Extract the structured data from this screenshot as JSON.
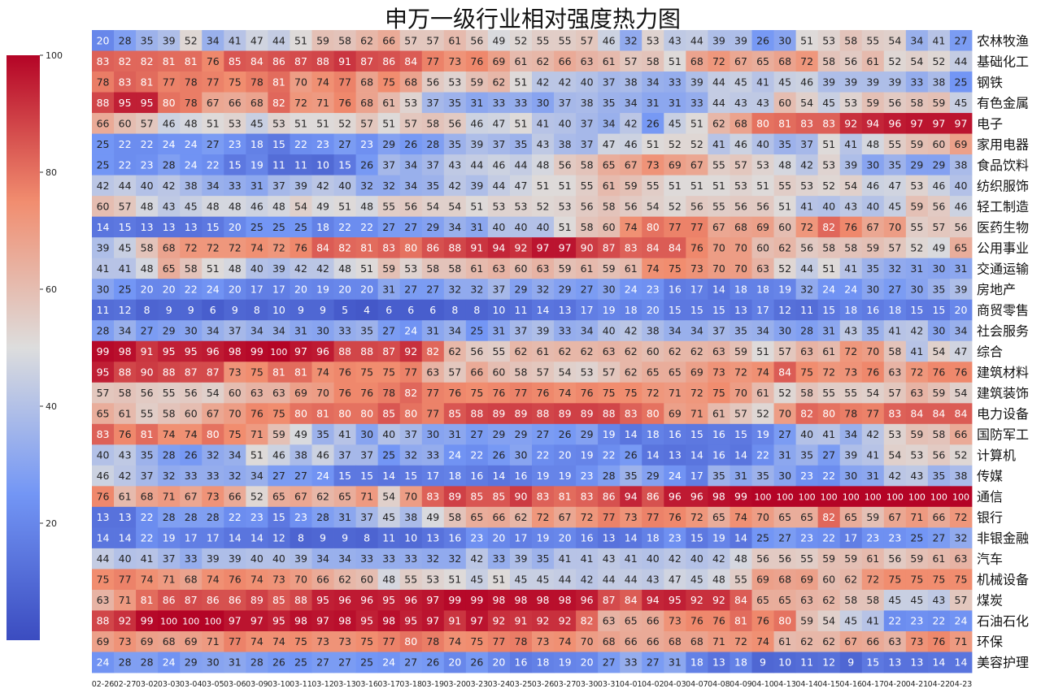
{
  "chart_data": {
    "type": "heatmap",
    "title": "申万一级行业相对强度热力图",
    "xlabel": "",
    "ylabel": "",
    "colorbar": {
      "min": 0,
      "max": 100,
      "ticks": [
        20,
        40,
        60,
        80,
        100
      ],
      "colormap": "coolwarm"
    },
    "colors": {
      "low": "#3b4cc0",
      "mid": "#dddddd",
      "high": "#b40426"
    },
    "x": [
      "02-26",
      "02-27",
      "03-02",
      "03-03",
      "03-04",
      "03-05",
      "03-06",
      "03-09",
      "03-10",
      "03-11",
      "03-12",
      "03-13",
      "03-16",
      "03-17",
      "03-18",
      "03-19",
      "03-20",
      "03-23",
      "03-24",
      "03-25",
      "03-26",
      "03-27",
      "03-30",
      "03-31",
      "04-01",
      "04-02",
      "04-03",
      "04-07",
      "04-08",
      "04-09",
      "04-10",
      "04-13",
      "04-14",
      "04-15",
      "04-16",
      "04-17",
      "04-20",
      "04-21",
      "04-22",
      "04-23"
    ],
    "y": [
      "农林牧渔",
      "基础化工",
      "钢铁",
      "有色金属",
      "电子",
      "家用电器",
      "食品饮料",
      "纺织服饰",
      "轻工制造",
      "医药生物",
      "公用事业",
      "交通运输",
      "房地产",
      "商贸零售",
      "社会服务",
      "综合",
      "建筑材料",
      "建筑装饰",
      "电力设备",
      "国防军工",
      "计算机",
      "传媒",
      "通信",
      "银行",
      "非银金融",
      "汽车",
      "机械设备",
      "煤炭",
      "石油石化",
      "环保",
      "美容护理"
    ],
    "values": [
      [
        20,
        28,
        35,
        39,
        52,
        34,
        41,
        47,
        44,
        51,
        59,
        58,
        62,
        66,
        57,
        57,
        61,
        56,
        49,
        52,
        55,
        55,
        57,
        46,
        32,
        53,
        43,
        44,
        39,
        39,
        26,
        30,
        51,
        53,
        58,
        55,
        54,
        34,
        41,
        27
      ],
      [
        83,
        82,
        82,
        81,
        81,
        76,
        85,
        84,
        86,
        87,
        88,
        91,
        87,
        86,
        84,
        77,
        73,
        76,
        69,
        61,
        62,
        66,
        63,
        61,
        57,
        58,
        51,
        68,
        72,
        67,
        65,
        68,
        72,
        58,
        56,
        61,
        52,
        54,
        52,
        44
      ],
      [
        78,
        83,
        81,
        77,
        78,
        77,
        75,
        78,
        81,
        70,
        74,
        77,
        68,
        75,
        68,
        56,
        53,
        59,
        62,
        51,
        42,
        42,
        40,
        37,
        38,
        34,
        33,
        39,
        44,
        45,
        41,
        45,
        46,
        39,
        39,
        39,
        39,
        33,
        38,
        25
      ],
      [
        88,
        95,
        95,
        80,
        78,
        67,
        66,
        68,
        82,
        72,
        71,
        76,
        68,
        61,
        53,
        37,
        35,
        31,
        33,
        33,
        30,
        37,
        38,
        35,
        34,
        31,
        31,
        33,
        44,
        43,
        43,
        60,
        54,
        45,
        53,
        59,
        56,
        58,
        59,
        45
      ],
      [
        66,
        60,
        57,
        46,
        48,
        51,
        53,
        45,
        53,
        51,
        51,
        52,
        57,
        51,
        57,
        58,
        56,
        46,
        47,
        51,
        41,
        40,
        37,
        34,
        42,
        26,
        45,
        51,
        62,
        68,
        80,
        81,
        83,
        83,
        92,
        94,
        96,
        97,
        97,
        97
      ],
      [
        25,
        22,
        22,
        24,
        24,
        27,
        23,
        18,
        15,
        22,
        23,
        27,
        23,
        29,
        26,
        28,
        35,
        39,
        37,
        35,
        43,
        38,
        37,
        47,
        46,
        51,
        52,
        52,
        41,
        46,
        40,
        35,
        37,
        51,
        41,
        48,
        55,
        59,
        60,
        69
      ],
      [
        25,
        22,
        23,
        28,
        24,
        22,
        15,
        19,
        11,
        11,
        10,
        15,
        26,
        37,
        34,
        37,
        43,
        44,
        46,
        44,
        48,
        56,
        58,
        65,
        67,
        73,
        69,
        67,
        55,
        57,
        53,
        48,
        42,
        53,
        39,
        30,
        35,
        29,
        29,
        38
      ],
      [
        42,
        44,
        40,
        42,
        38,
        34,
        33,
        31,
        37,
        39,
        42,
        40,
        32,
        32,
        34,
        35,
        42,
        39,
        44,
        47,
        51,
        51,
        55,
        61,
        59,
        55,
        51,
        51,
        51,
        53,
        51,
        55,
        53,
        52,
        54,
        46,
        47,
        53,
        46,
        40
      ],
      [
        60,
        57,
        48,
        43,
        45,
        48,
        48,
        46,
        48,
        54,
        49,
        51,
        48,
        55,
        56,
        54,
        54,
        51,
        53,
        53,
        52,
        53,
        56,
        58,
        56,
        54,
        52,
        56,
        55,
        56,
        56,
        51,
        41,
        40,
        43,
        40,
        45,
        59,
        56,
        46
      ],
      [
        14,
        15,
        13,
        13,
        13,
        15,
        20,
        25,
        25,
        25,
        18,
        22,
        22,
        27,
        27,
        29,
        34,
        31,
        40,
        40,
        40,
        51,
        58,
        60,
        74,
        80,
        77,
        77,
        67,
        68,
        69,
        60,
        72,
        82,
        76,
        67,
        70,
        55,
        57,
        56
      ],
      [
        39,
        45,
        58,
        68,
        72,
        72,
        72,
        74,
        72,
        76,
        84,
        82,
        81,
        83,
        80,
        86,
        88,
        91,
        94,
        92,
        97,
        97,
        90,
        87,
        83,
        84,
        84,
        76,
        70,
        70,
        60,
        62,
        56,
        58,
        58,
        59,
        57,
        52,
        49,
        65
      ],
      [
        41,
        41,
        48,
        65,
        58,
        51,
        48,
        40,
        39,
        42,
        42,
        48,
        51,
        59,
        53,
        58,
        58,
        61,
        63,
        60,
        63,
        59,
        61,
        59,
        61,
        74,
        75,
        73,
        70,
        70,
        63,
        52,
        44,
        51,
        41,
        35,
        32,
        31,
        30,
        31
      ],
      [
        30,
        25,
        20,
        20,
        22,
        24,
        20,
        17,
        17,
        20,
        19,
        20,
        20,
        31,
        27,
        27,
        32,
        32,
        37,
        29,
        32,
        29,
        27,
        30,
        24,
        23,
        16,
        17,
        14,
        18,
        18,
        19,
        32,
        24,
        24,
        30,
        27,
        30,
        35,
        39
      ],
      [
        11,
        12,
        8,
        9,
        9,
        6,
        9,
        8,
        10,
        9,
        9,
        5,
        4,
        6,
        6,
        6,
        8,
        8,
        10,
        11,
        14,
        13,
        17,
        19,
        18,
        20,
        15,
        15,
        15,
        13,
        17,
        12,
        11,
        15,
        18,
        16,
        18,
        15,
        15,
        20
      ],
      [
        28,
        34,
        27,
        29,
        30,
        34,
        37,
        34,
        34,
        31,
        30,
        33,
        35,
        27,
        24,
        31,
        34,
        25,
        31,
        37,
        39,
        33,
        34,
        40,
        42,
        38,
        34,
        34,
        37,
        35,
        34,
        30,
        28,
        31,
        43,
        35,
        41,
        42,
        30,
        34
      ],
      [
        99,
        98,
        91,
        95,
        95,
        96,
        98,
        99,
        100,
        97,
        96,
        88,
        88,
        87,
        92,
        82,
        62,
        56,
        55,
        62,
        61,
        62,
        62,
        63,
        62,
        60,
        62,
        62,
        63,
        59,
        51,
        57,
        63,
        61,
        72,
        70,
        58,
        41,
        54,
        47
      ],
      [
        95,
        88,
        90,
        88,
        87,
        87,
        73,
        75,
        81,
        81,
        74,
        76,
        75,
        75,
        77,
        63,
        57,
        66,
        60,
        58,
        57,
        54,
        53,
        57,
        62,
        65,
        65,
        69,
        73,
        72,
        74,
        84,
        75,
        72,
        73,
        76,
        63,
        72,
        76,
        76
      ],
      [
        57,
        58,
        56,
        55,
        56,
        54,
        60,
        63,
        63,
        69,
        70,
        76,
        76,
        78,
        82,
        77,
        76,
        75,
        76,
        77,
        76,
        74,
        76,
        75,
        75,
        72,
        71,
        72,
        75,
        70,
        61,
        52,
        58,
        55,
        55,
        54,
        57,
        63,
        59,
        54
      ],
      [
        65,
        61,
        55,
        58,
        60,
        67,
        70,
        76,
        75,
        80,
        81,
        80,
        80,
        85,
        80,
        77,
        85,
        88,
        89,
        89,
        88,
        89,
        89,
        88,
        83,
        80,
        69,
        71,
        61,
        57,
        52,
        70,
        82,
        80,
        78,
        77,
        83,
        84,
        84,
        84
      ],
      [
        83,
        76,
        81,
        74,
        74,
        80,
        75,
        71,
        59,
        49,
        35,
        41,
        30,
        40,
        37,
        30,
        31,
        27,
        29,
        29,
        27,
        26,
        29,
        19,
        14,
        18,
        16,
        15,
        16,
        15,
        19,
        27,
        40,
        41,
        34,
        42,
        53,
        59,
        58,
        66
      ],
      [
        40,
        43,
        35,
        28,
        26,
        32,
        34,
        51,
        46,
        38,
        46,
        37,
        37,
        25,
        32,
        33,
        24,
        22,
        26,
        30,
        22,
        20,
        19,
        22,
        26,
        14,
        13,
        14,
        16,
        14,
        22,
        31,
        35,
        27,
        39,
        41,
        54,
        53,
        56,
        52
      ],
      [
        46,
        42,
        37,
        32,
        33,
        33,
        32,
        34,
        27,
        27,
        24,
        15,
        15,
        14,
        15,
        17,
        18,
        16,
        14,
        16,
        19,
        19,
        23,
        28,
        35,
        29,
        24,
        17,
        35,
        31,
        35,
        30,
        23,
        22,
        30,
        31,
        42,
        43,
        35,
        38
      ],
      [
        76,
        61,
        68,
        71,
        67,
        73,
        66,
        52,
        65,
        67,
        62,
        65,
        71,
        54,
        70,
        83,
        89,
        85,
        85,
        90,
        83,
        81,
        83,
        86,
        94,
        86,
        96,
        96,
        98,
        99,
        100,
        100,
        100,
        100,
        100,
        100,
        100,
        100,
        100,
        100
      ],
      [
        13,
        13,
        22,
        28,
        28,
        28,
        22,
        23,
        15,
        23,
        28,
        31,
        37,
        45,
        38,
        49,
        58,
        65,
        66,
        62,
        72,
        67,
        72,
        77,
        73,
        77,
        76,
        72,
        65,
        74,
        70,
        65,
        65,
        82,
        65,
        59,
        67,
        71,
        66,
        72
      ],
      [
        14,
        14,
        22,
        19,
        17,
        17,
        14,
        14,
        12,
        8,
        9,
        9,
        8,
        11,
        10,
        13,
        16,
        23,
        20,
        17,
        19,
        20,
        16,
        13,
        14,
        18,
        23,
        15,
        19,
        14,
        25,
        27,
        23,
        22,
        17,
        23,
        23,
        25,
        27,
        32
      ],
      [
        44,
        40,
        41,
        37,
        33,
        39,
        39,
        40,
        40,
        39,
        34,
        34,
        33,
        33,
        33,
        32,
        32,
        42,
        33,
        39,
        35,
        41,
        41,
        43,
        41,
        40,
        42,
        40,
        42,
        48,
        56,
        56,
        55,
        59,
        59,
        61,
        56,
        59,
        61,
        63
      ],
      [
        75,
        77,
        74,
        71,
        68,
        74,
        76,
        74,
        73,
        70,
        66,
        62,
        60,
        48,
        55,
        53,
        51,
        45,
        51,
        45,
        45,
        44,
        42,
        44,
        44,
        43,
        47,
        45,
        48,
        55,
        69,
        68,
        69,
        60,
        62,
        72,
        75,
        75,
        75,
        75
      ],
      [
        63,
        71,
        81,
        86,
        87,
        86,
        86,
        89,
        85,
        88,
        95,
        96,
        96,
        95,
        96,
        97,
        99,
        99,
        98,
        98,
        98,
        98,
        96,
        87,
        84,
        94,
        95,
        92,
        92,
        84,
        65,
        65,
        63,
        62,
        58,
        58,
        45,
        45,
        43,
        57
      ],
      [
        88,
        92,
        99,
        100,
        100,
        100,
        97,
        97,
        95,
        98,
        97,
        98,
        95,
        98,
        95,
        97,
        91,
        97,
        92,
        91,
        92,
        92,
        82,
        63,
        65,
        66,
        73,
        76,
        76,
        81,
        76,
        80,
        59,
        54,
        45,
        41,
        22,
        23,
        22,
        24
      ],
      [
        69,
        73,
        69,
        68,
        69,
        71,
        77,
        74,
        74,
        75,
        73,
        73,
        75,
        77,
        80,
        78,
        74,
        75,
        77,
        78,
        73,
        74,
        70,
        68,
        66,
        66,
        68,
        68,
        71,
        72,
        74,
        61,
        62,
        62,
        67,
        66,
        63,
        73,
        76,
        71
      ],
      [
        24,
        28,
        28,
        24,
        29,
        30,
        31,
        28,
        26,
        25,
        27,
        27,
        25,
        24,
        27,
        26,
        20,
        26,
        20,
        16,
        18,
        19,
        20,
        27,
        33,
        27,
        31,
        18,
        13,
        18,
        9,
        10,
        11,
        12,
        9,
        15,
        13,
        13,
        14,
        14
      ]
    ]
  }
}
